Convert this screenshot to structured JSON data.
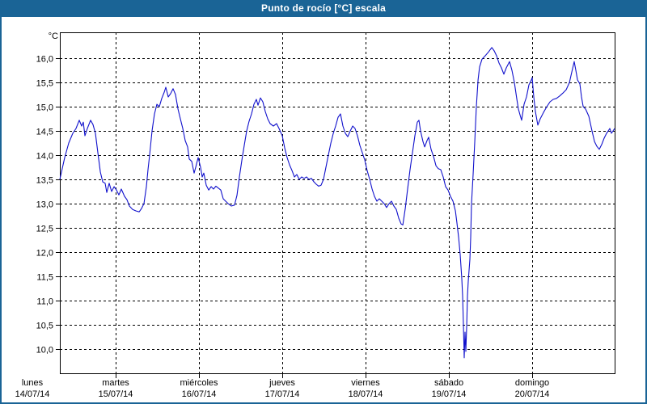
{
  "window": {
    "title": "Punto de rocío [°C] escala"
  },
  "colors": {
    "frame": "#1a6496",
    "title_text": "#ffffff",
    "line": "#1111cc",
    "grid": "#000000",
    "background": "#ffffff"
  },
  "chart_data": {
    "type": "line",
    "title": "Punto de rocío [°C] escala",
    "y_unit_label": "°C",
    "ylim": [
      9.5,
      16.533
    ],
    "xlim_days": [
      0.33,
      6.99
    ],
    "grid": "dashed",
    "legend": "none",
    "y_ticks": {
      "values": [
        16.0,
        15.5,
        15.0,
        14.5,
        14.0,
        13.5,
        13.0,
        12.5,
        12.0,
        11.5,
        11.0,
        10.5,
        10.0
      ],
      "labels": [
        "16,0",
        "15,5",
        "15,0",
        "14,5",
        "14,0",
        "13,5",
        "13,0",
        "12,5",
        "12,0",
        "11,5",
        "11,0",
        "10,5",
        "10,0"
      ]
    },
    "x_days": [
      {
        "name": "lunes",
        "date": "14/07/14",
        "t": 0
      },
      {
        "name": "martes",
        "date": "15/07/14",
        "t": 1
      },
      {
        "name": "miércoles",
        "date": "16/07/14",
        "t": 2
      },
      {
        "name": "jueves",
        "date": "17/07/14",
        "t": 3
      },
      {
        "name": "viernes",
        "date": "18/07/14",
        "t": 4
      },
      {
        "name": "sábado",
        "date": "19/07/14",
        "t": 5
      },
      {
        "name": "domingo",
        "date": "20/07/14",
        "t": 6
      }
    ],
    "x_gridline_ts": [
      1,
      2,
      3,
      4,
      5,
      6
    ],
    "series": [
      {
        "name": "Punto de rocío [°C]",
        "color": "#1111cc",
        "points": [
          [
            0.33,
            13.5
          ],
          [
            0.388,
            13.95
          ],
          [
            0.437,
            14.25
          ],
          [
            0.485,
            14.45
          ],
          [
            0.524,
            14.55
          ],
          [
            0.563,
            14.72
          ],
          [
            0.592,
            14.6
          ],
          [
            0.612,
            14.68
          ],
          [
            0.631,
            14.4
          ],
          [
            0.66,
            14.55
          ],
          [
            0.699,
            14.72
          ],
          [
            0.728,
            14.63
          ],
          [
            0.757,
            14.45
          ],
          [
            0.786,
            14.05
          ],
          [
            0.816,
            13.65
          ],
          [
            0.845,
            13.45
          ],
          [
            0.874,
            13.42
          ],
          [
            0.893,
            13.23
          ],
          [
            0.922,
            13.42
          ],
          [
            0.951,
            13.25
          ],
          [
            0.981,
            13.35
          ],
          [
            1.01,
            13.28
          ],
          [
            1.039,
            13.18
          ],
          [
            1.068,
            13.3
          ],
          [
            1.107,
            13.15
          ],
          [
            1.136,
            13.08
          ],
          [
            1.165,
            12.95
          ],
          [
            1.204,
            12.88
          ],
          [
            1.243,
            12.85
          ],
          [
            1.282,
            12.83
          ],
          [
            1.311,
            12.9
          ],
          [
            1.34,
            13.0
          ],
          [
            1.369,
            13.35
          ],
          [
            1.388,
            13.7
          ],
          [
            1.408,
            14.0
          ],
          [
            1.437,
            14.5
          ],
          [
            1.466,
            14.85
          ],
          [
            1.495,
            15.05
          ],
          [
            1.524,
            15.0
          ],
          [
            1.553,
            15.17
          ],
          [
            1.583,
            15.3
          ],
          [
            1.602,
            15.4
          ],
          [
            1.631,
            15.2
          ],
          [
            1.66,
            15.27
          ],
          [
            1.689,
            15.37
          ],
          [
            1.718,
            15.25
          ],
          [
            1.748,
            14.95
          ],
          [
            1.777,
            14.75
          ],
          [
            1.806,
            14.55
          ],
          [
            1.835,
            14.3
          ],
          [
            1.864,
            14.17
          ],
          [
            1.883,
            13.92
          ],
          [
            1.913,
            13.87
          ],
          [
            1.942,
            13.63
          ],
          [
            1.961,
            13.75
          ],
          [
            1.99,
            13.95
          ],
          [
            2.019,
            13.75
          ],
          [
            2.039,
            13.55
          ],
          [
            2.058,
            13.63
          ],
          [
            2.087,
            13.38
          ],
          [
            2.117,
            13.28
          ],
          [
            2.146,
            13.35
          ],
          [
            2.175,
            13.3
          ],
          [
            2.204,
            13.36
          ],
          [
            2.233,
            13.32
          ],
          [
            2.262,
            13.28
          ],
          [
            2.291,
            13.1
          ],
          [
            2.32,
            13.05
          ],
          [
            2.35,
            13.0
          ],
          [
            2.388,
            12.95
          ],
          [
            2.427,
            12.97
          ],
          [
            2.456,
            13.17
          ],
          [
            2.485,
            13.55
          ],
          [
            2.515,
            13.9
          ],
          [
            2.544,
            14.2
          ],
          [
            2.573,
            14.5
          ],
          [
            2.602,
            14.7
          ],
          [
            2.631,
            14.85
          ],
          [
            2.66,
            15.05
          ],
          [
            2.689,
            15.15
          ],
          [
            2.709,
            15.03
          ],
          [
            2.738,
            15.18
          ],
          [
            2.767,
            15.1
          ],
          [
            2.796,
            14.9
          ],
          [
            2.825,
            14.75
          ],
          [
            2.854,
            14.65
          ],
          [
            2.893,
            14.6
          ],
          [
            2.932,
            14.65
          ],
          [
            2.961,
            14.55
          ],
          [
            3.0,
            14.4
          ],
          [
            3.029,
            14.15
          ],
          [
            3.058,
            13.95
          ],
          [
            3.087,
            13.8
          ],
          [
            3.117,
            13.68
          ],
          [
            3.146,
            13.55
          ],
          [
            3.175,
            13.6
          ],
          [
            3.204,
            13.5
          ],
          [
            3.233,
            13.55
          ],
          [
            3.262,
            13.52
          ],
          [
            3.291,
            13.55
          ],
          [
            3.32,
            13.5
          ],
          [
            3.35,
            13.52
          ],
          [
            3.379,
            13.45
          ],
          [
            3.408,
            13.4
          ],
          [
            3.437,
            13.36
          ],
          [
            3.466,
            13.38
          ],
          [
            3.495,
            13.5
          ],
          [
            3.524,
            13.75
          ],
          [
            3.553,
            14.0
          ],
          [
            3.583,
            14.25
          ],
          [
            3.612,
            14.45
          ],
          [
            3.641,
            14.6
          ],
          [
            3.67,
            14.78
          ],
          [
            3.699,
            14.85
          ],
          [
            3.728,
            14.6
          ],
          [
            3.757,
            14.45
          ],
          [
            3.786,
            14.38
          ],
          [
            3.816,
            14.5
          ],
          [
            3.845,
            14.6
          ],
          [
            3.874,
            14.55
          ],
          [
            3.903,
            14.4
          ],
          [
            3.932,
            14.2
          ],
          [
            3.961,
            14.05
          ],
          [
            3.99,
            13.9
          ],
          [
            4.019,
            13.68
          ],
          [
            4.049,
            13.5
          ],
          [
            4.078,
            13.3
          ],
          [
            4.107,
            13.15
          ],
          [
            4.136,
            13.05
          ],
          [
            4.165,
            13.1
          ],
          [
            4.194,
            13.05
          ],
          [
            4.223,
            13.0
          ],
          [
            4.252,
            12.92
          ],
          [
            4.282,
            13.0
          ],
          [
            4.311,
            13.05
          ],
          [
            4.34,
            12.95
          ],
          [
            4.369,
            12.88
          ],
          [
            4.398,
            12.7
          ],
          [
            4.427,
            12.58
          ],
          [
            4.447,
            12.56
          ],
          [
            4.476,
            12.9
          ],
          [
            4.505,
            13.3
          ],
          [
            4.534,
            13.7
          ],
          [
            4.563,
            14.05
          ],
          [
            4.592,
            14.4
          ],
          [
            4.621,
            14.68
          ],
          [
            4.641,
            14.72
          ],
          [
            4.66,
            14.5
          ],
          [
            4.689,
            14.28
          ],
          [
            4.709,
            14.17
          ],
          [
            4.738,
            14.3
          ],
          [
            4.757,
            14.37
          ],
          [
            4.786,
            14.12
          ],
          [
            4.816,
            13.97
          ],
          [
            4.845,
            13.78
          ],
          [
            4.874,
            13.72
          ],
          [
            4.903,
            13.7
          ],
          [
            4.932,
            13.55
          ],
          [
            4.961,
            13.35
          ],
          [
            4.99,
            13.28
          ],
          [
            5.019,
            13.15
          ],
          [
            5.049,
            13.05
          ],
          [
            5.078,
            12.85
          ],
          [
            5.097,
            12.6
          ],
          [
            5.117,
            12.3
          ],
          [
            5.136,
            11.95
          ],
          [
            5.155,
            11.45
          ],
          [
            5.165,
            11.1
          ],
          [
            5.175,
            10.5
          ],
          [
            5.184,
            9.82
          ],
          [
            5.194,
            10.35
          ],
          [
            5.204,
            9.95
          ],
          [
            5.214,
            10.5
          ],
          [
            5.223,
            11.1
          ],
          [
            5.233,
            11.4
          ],
          [
            5.252,
            11.85
          ],
          [
            5.262,
            12.3
          ],
          [
            5.272,
            13.0
          ],
          [
            5.291,
            13.6
          ],
          [
            5.311,
            14.3
          ],
          [
            5.33,
            15.0
          ],
          [
            5.35,
            15.55
          ],
          [
            5.369,
            15.82
          ],
          [
            5.398,
            15.98
          ],
          [
            5.437,
            16.05
          ],
          [
            5.476,
            16.13
          ],
          [
            5.515,
            16.22
          ],
          [
            5.544,
            16.15
          ],
          [
            5.573,
            16.05
          ],
          [
            5.602,
            15.9
          ],
          [
            5.631,
            15.8
          ],
          [
            5.66,
            15.67
          ],
          [
            5.689,
            15.8
          ],
          [
            5.728,
            15.93
          ],
          [
            5.757,
            15.75
          ],
          [
            5.786,
            15.5
          ],
          [
            5.816,
            15.15
          ],
          [
            5.835,
            14.95
          ],
          [
            5.854,
            14.83
          ],
          [
            5.874,
            14.72
          ],
          [
            5.903,
            15.05
          ],
          [
            5.932,
            15.2
          ],
          [
            5.961,
            15.45
          ],
          [
            5.99,
            15.55
          ],
          [
            6.0,
            15.6
          ],
          [
            6.019,
            15.2
          ],
          [
            6.039,
            14.9
          ],
          [
            6.068,
            14.62
          ],
          [
            6.097,
            14.75
          ],
          [
            6.136,
            14.88
          ],
          [
            6.175,
            15.0
          ],
          [
            6.214,
            15.1
          ],
          [
            6.252,
            15.15
          ],
          [
            6.291,
            15.17
          ],
          [
            6.33,
            15.22
          ],
          [
            6.369,
            15.28
          ],
          [
            6.408,
            15.35
          ],
          [
            6.447,
            15.5
          ],
          [
            6.476,
            15.72
          ],
          [
            6.505,
            15.93
          ],
          [
            6.524,
            15.75
          ],
          [
            6.544,
            15.55
          ],
          [
            6.573,
            15.47
          ],
          [
            6.592,
            15.2
          ],
          [
            6.612,
            15.0
          ],
          [
            6.641,
            14.95
          ],
          [
            6.68,
            14.8
          ],
          [
            6.718,
            14.5
          ],
          [
            6.748,
            14.28
          ],
          [
            6.777,
            14.18
          ],
          [
            6.806,
            14.12
          ],
          [
            6.835,
            14.22
          ],
          [
            6.864,
            14.35
          ],
          [
            6.893,
            14.45
          ],
          [
            6.913,
            14.5
          ],
          [
            6.932,
            14.55
          ],
          [
            6.951,
            14.45
          ],
          [
            6.971,
            14.5
          ],
          [
            6.99,
            14.55
          ]
        ]
      }
    ]
  }
}
